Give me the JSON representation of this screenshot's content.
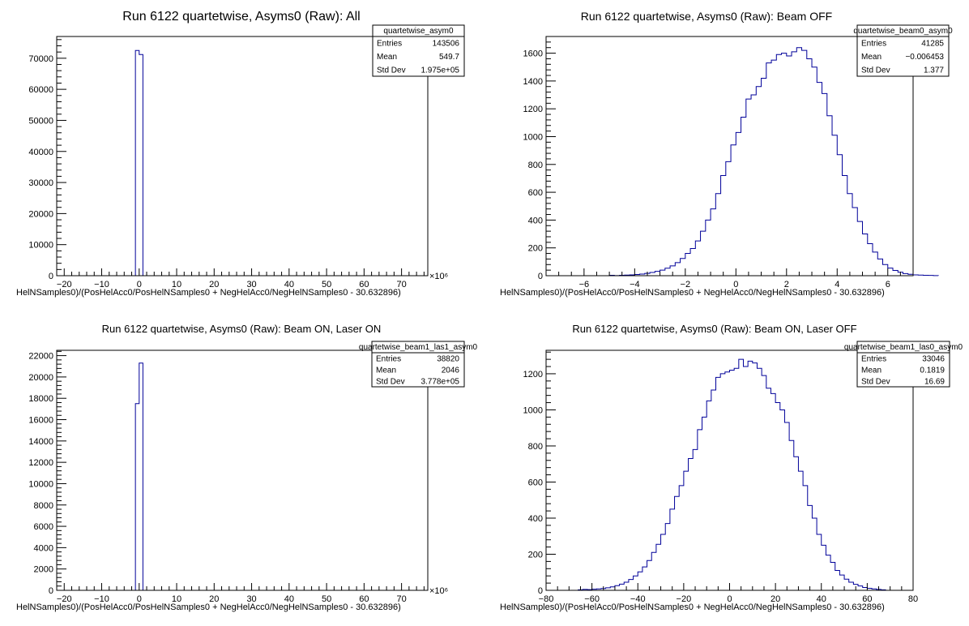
{
  "chart_data": [
    {
      "type": "bar",
      "title": "Run 6122 quartetwise, Asyms0 (Raw): All",
      "xlabel": "HelNSamples0)/(PosHelAcc0/PosHelNSamples0 + NegHelAcc0/NegHelNSamples0 - 30.632896)",
      "x_exponent": "×10⁶",
      "xlim": [
        -22,
        77
      ],
      "ylim": [
        0,
        77000
      ],
      "grid": false,
      "x_ticks": [
        -20,
        -10,
        0,
        10,
        20,
        30,
        40,
        50,
        60,
        70
      ],
      "y_ticks": [
        0,
        10000,
        20000,
        30000,
        40000,
        50000,
        60000,
        70000
      ],
      "bins": [
        [
          -1.0,
          0.0,
          72500
        ],
        [
          0.0,
          1.0,
          71200
        ]
      ],
      "stats": {
        "name": "quartetwise_asym0",
        "rows": [
          [
            "Entries",
            "143506"
          ],
          [
            "Mean",
            "549.7"
          ],
          [
            "Std Dev",
            "1.975e+05"
          ]
        ]
      }
    },
    {
      "type": "bar",
      "title": "Run 6122 quartetwise, Asyms0 (Raw): Beam OFF",
      "xlabel": "HelNSamples0)/(PosHelAcc0/PosHelNSamples0 + NegHelAcc0/NegHelNSamples0 - 30.632896)",
      "xlim": [
        -7.5,
        7.0
      ],
      "ylim": [
        0,
        1720
      ],
      "grid": false,
      "x_ticks": [
        -6,
        -4,
        -2,
        0,
        2,
        4,
        6
      ],
      "y_ticks": [
        0,
        200,
        400,
        600,
        800,
        1000,
        1200,
        1400,
        1600
      ],
      "bin_start": -5.0,
      "bin_width": 0.2,
      "values": [
        3,
        1,
        3,
        4,
        6,
        9,
        12,
        17,
        23,
        31,
        40,
        54,
        71,
        94,
        124,
        160,
        195,
        250,
        320,
        400,
        480,
        590,
        720,
        820,
        940,
        1030,
        1140,
        1270,
        1300,
        1360,
        1420,
        1530,
        1550,
        1590,
        1600,
        1580,
        1610,
        1640,
        1620,
        1560,
        1500,
        1390,
        1310,
        1150,
        1010,
        870,
        720,
        590,
        490,
        390,
        300,
        230,
        170,
        120,
        80,
        55,
        38,
        25,
        15,
        10,
        6,
        4,
        3,
        2,
        1
      ],
      "stats": {
        "name": "quartetwise_beam0_asym0",
        "rows": [
          [
            "Entries",
            "41285"
          ],
          [
            "Mean",
            "−0.006453"
          ],
          [
            "Std Dev",
            "1.377"
          ]
        ]
      }
    },
    {
      "type": "bar",
      "title": "Run 6122 quartetwise, Asyms0 (Raw): Beam ON, Laser ON",
      "xlabel": "HelNSamples0)/(PosHelAcc0/PosHelNSamples0 + NegHelAcc0/NegHelNSamples0 - 30.632896)",
      "x_exponent": "×10⁶",
      "xlim": [
        -22,
        77
      ],
      "ylim": [
        0,
        22500
      ],
      "grid": false,
      "x_ticks": [
        -20,
        -10,
        0,
        10,
        20,
        30,
        40,
        50,
        60,
        70
      ],
      "y_ticks": [
        0,
        2000,
        4000,
        6000,
        8000,
        10000,
        12000,
        14000,
        16000,
        18000,
        20000,
        22000
      ],
      "bins": [
        [
          -1.0,
          0.0,
          17500
        ],
        [
          0.0,
          1.0,
          21300
        ]
      ],
      "stats": {
        "name": "quartetwise_beam1_las1_asym0",
        "rows": [
          [
            "Entries",
            "38820"
          ],
          [
            "Mean",
            "2046"
          ],
          [
            "Std Dev",
            "3.778e+05"
          ]
        ]
      }
    },
    {
      "type": "bar",
      "title": "Run 6122 quartetwise, Asyms0 (Raw): Beam ON, Laser OFF",
      "xlabel": "HelNSamples0)/(PosHelAcc0/PosHelNSamples0 + NegHelAcc0/NegHelNSamples0 - 30.632896)",
      "xlim": [
        -80,
        80
      ],
      "ylim": [
        0,
        1330
      ],
      "grid": false,
      "x_ticks": [
        -80,
        -60,
        -40,
        -20,
        0,
        20,
        40,
        60,
        80
      ],
      "y_ticks": [
        0,
        200,
        400,
        600,
        800,
        1000,
        1200
      ],
      "bin_start": -66,
      "bin_width": 2,
      "values": [
        3,
        5,
        4,
        6,
        8,
        10,
        14,
        19,
        26,
        34,
        45,
        60,
        80,
        102,
        130,
        165,
        210,
        255,
        310,
        370,
        450,
        520,
        580,
        660,
        730,
        780,
        890,
        960,
        1050,
        1110,
        1180,
        1200,
        1210,
        1220,
        1230,
        1280,
        1240,
        1270,
        1260,
        1230,
        1190,
        1120,
        1090,
        1040,
        1000,
        930,
        830,
        740,
        660,
        580,
        470,
        400,
        310,
        250,
        195,
        155,
        110,
        85,
        62,
        45,
        33,
        24,
        16,
        11,
        8,
        5,
        3
      ],
      "stats": {
        "name": "quartetwise_beam1_las0_asym0",
        "rows": [
          [
            "Entries",
            "33046"
          ],
          [
            "Mean",
            "0.1819"
          ],
          [
            "Std Dev",
            "16.69"
          ]
        ]
      }
    }
  ]
}
